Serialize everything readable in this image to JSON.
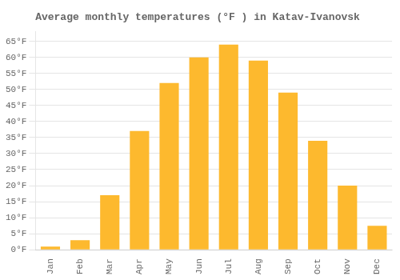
{
  "chart_data": {
    "type": "bar",
    "title": "Average monthly temperatures (°F ) in Katav-Ivanovsk",
    "categories": [
      "Jan",
      "Feb",
      "Mar",
      "Apr",
      "May",
      "Jun",
      "Jul",
      "Aug",
      "Sep",
      "Oct",
      "Nov",
      "Dec"
    ],
    "values": [
      1,
      3,
      17,
      37,
      52,
      60,
      64,
      59,
      49,
      34,
      20,
      7.5
    ],
    "color": "#FDB92E",
    "ylim": [
      0,
      68
    ],
    "yticks": [
      {
        "value": 0,
        "label": "0°F"
      },
      {
        "value": 5,
        "label": "5°F"
      },
      {
        "value": 10,
        "label": "10°F"
      },
      {
        "value": 15,
        "label": "15°F"
      },
      {
        "value": 20,
        "label": "20°F"
      },
      {
        "value": 25,
        "label": "25°F"
      },
      {
        "value": 30,
        "label": "30°F"
      },
      {
        "value": 35,
        "label": "35°F"
      },
      {
        "value": 40,
        "label": "40°F"
      },
      {
        "value": 45,
        "label": "45°F"
      },
      {
        "value": 50,
        "label": "50°F"
      },
      {
        "value": 55,
        "label": "55°F"
      },
      {
        "value": 60,
        "label": "60°F"
      },
      {
        "value": 65,
        "label": "65°F"
      }
    ],
    "grid": true
  }
}
